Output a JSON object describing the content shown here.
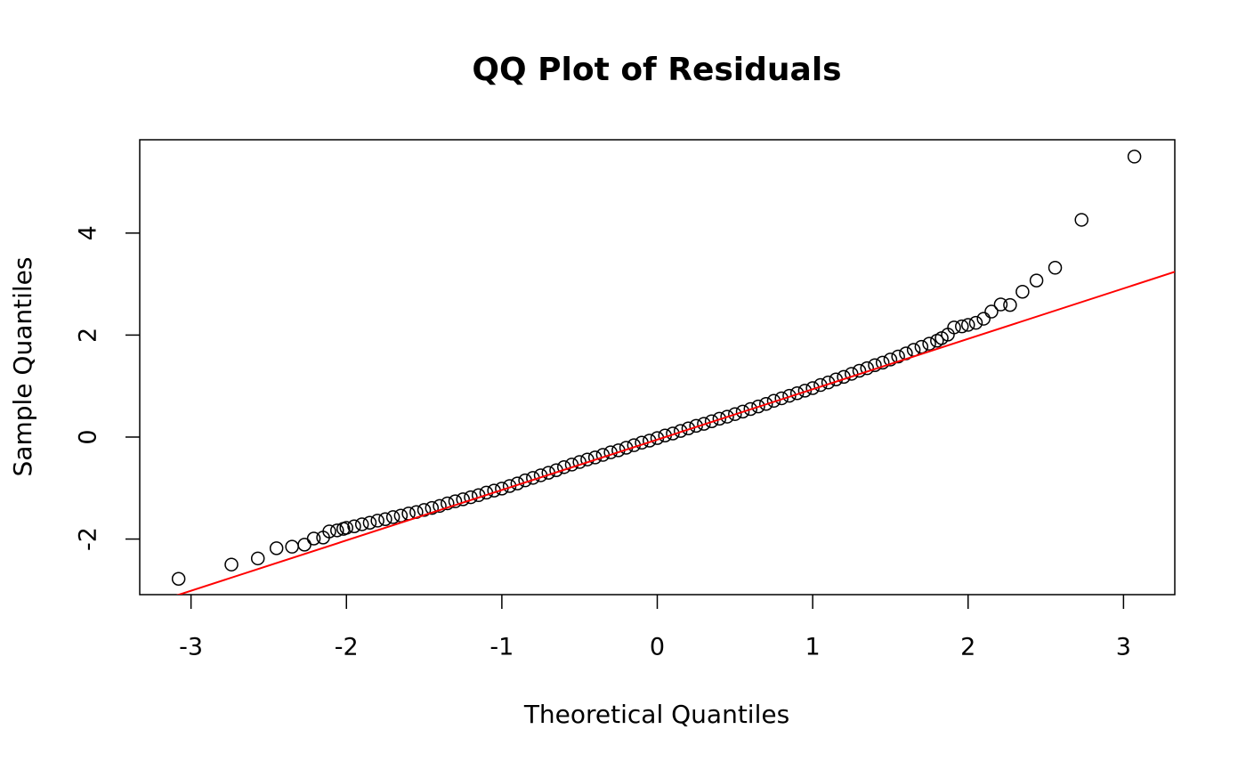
{
  "chart_data": {
    "type": "scatter",
    "title": "QQ Plot of Residuals",
    "x_label": "Theoretical Quantiles",
    "y_label": "Sample Quantiles",
    "xlim": [
      -3.33,
      3.33
    ],
    "ylim": [
      -3.09,
      5.83
    ],
    "xticks": [
      -3,
      -2,
      -1,
      0,
      1,
      2,
      3
    ],
    "yticks": [
      -2,
      0,
      2,
      4
    ],
    "points": {
      "color": "#000000",
      "x": [
        -3.08,
        -2.74,
        -2.57,
        -2.45,
        -2.35,
        -2.27,
        -2.21,
        -2.15,
        -2.11,
        -2.06,
        -2.02,
        -2.0,
        -1.95,
        -1.9,
        -1.85,
        -1.8,
        -1.75,
        -1.7,
        -1.65,
        -1.6,
        -1.55,
        -1.5,
        -1.45,
        -1.4,
        -1.35,
        -1.3,
        -1.25,
        -1.2,
        -1.15,
        -1.1,
        -1.05,
        -1.0,
        -0.95,
        -0.9,
        -0.85,
        -0.8,
        -0.75,
        -0.7,
        -0.65,
        -0.6,
        -0.55,
        -0.5,
        -0.45,
        -0.4,
        -0.35,
        -0.3,
        -0.25,
        -0.2,
        -0.15,
        -0.1,
        -0.05,
        0,
        0.05,
        0.1,
        0.15,
        0.2,
        0.25,
        0.3,
        0.35,
        0.4,
        0.45,
        0.5,
        0.55,
        0.6,
        0.65,
        0.7,
        0.75,
        0.8,
        0.85,
        0.9,
        0.95,
        1.0,
        1.05,
        1.1,
        1.15,
        1.2,
        1.25,
        1.3,
        1.35,
        1.4,
        1.45,
        1.5,
        1.55,
        1.6,
        1.65,
        1.7,
        1.75,
        1.8,
        1.83,
        1.87,
        1.91,
        1.96,
        2.0,
        2.05,
        2.1,
        2.15,
        2.21,
        2.27,
        2.35,
        2.44,
        2.56,
        2.73,
        3.07
      ],
      "y": [
        -2.78,
        -2.5,
        -2.38,
        -2.18,
        -2.15,
        -2.11,
        -1.99,
        -1.97,
        -1.85,
        -1.83,
        -1.8,
        -1.78,
        -1.75,
        -1.71,
        -1.68,
        -1.64,
        -1.61,
        -1.57,
        -1.54,
        -1.5,
        -1.47,
        -1.43,
        -1.39,
        -1.35,
        -1.3,
        -1.26,
        -1.22,
        -1.18,
        -1.14,
        -1.09,
        -1.05,
        -1.01,
        -0.96,
        -0.91,
        -0.85,
        -0.8,
        -0.75,
        -0.7,
        -0.65,
        -0.59,
        -0.54,
        -0.49,
        -0.44,
        -0.4,
        -0.35,
        -0.3,
        -0.26,
        -0.21,
        -0.16,
        -0.11,
        -0.07,
        -0.02,
        0.03,
        0.07,
        0.12,
        0.17,
        0.22,
        0.26,
        0.31,
        0.36,
        0.4,
        0.45,
        0.5,
        0.55,
        0.6,
        0.65,
        0.71,
        0.76,
        0.81,
        0.86,
        0.91,
        0.96,
        1.02,
        1.07,
        1.13,
        1.18,
        1.24,
        1.3,
        1.35,
        1.41,
        1.46,
        1.52,
        1.58,
        1.64,
        1.71,
        1.77,
        1.83,
        1.89,
        1.94,
        2.01,
        2.15,
        2.17,
        2.2,
        2.24,
        2.32,
        2.46,
        2.6,
        2.59,
        2.85,
        3.07,
        3.32,
        4.26,
        5.5
      ]
    },
    "reference_line": {
      "color": "#ff0000",
      "x": [
        -3.33,
        3.33
      ],
      "y": [
        -3.34,
        3.24
      ]
    }
  }
}
